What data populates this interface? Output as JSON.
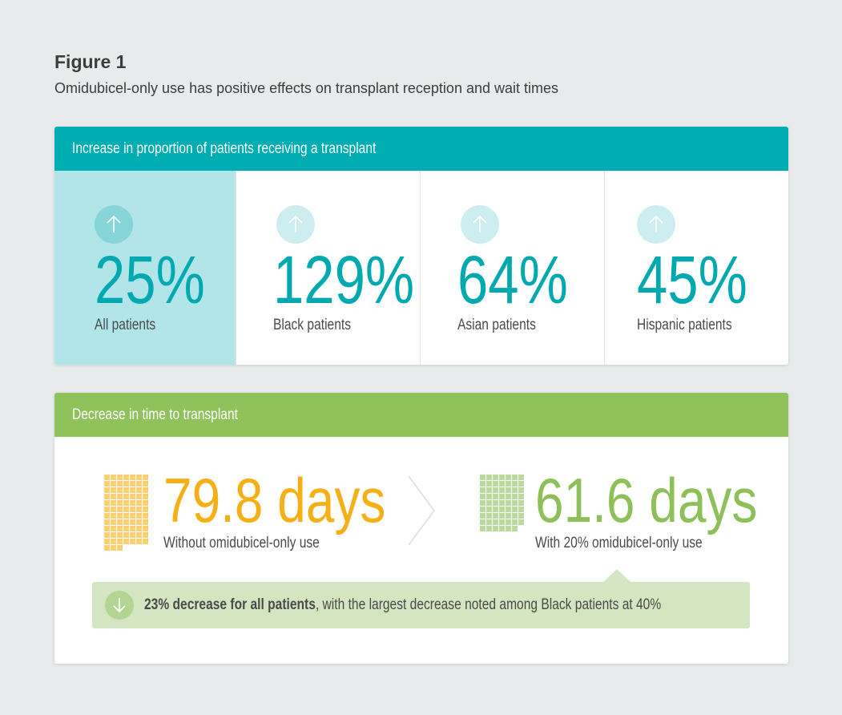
{
  "figure": {
    "title": "Figure 1",
    "subtitle": "Omidubicel-only use has positive effects on transplant reception and wait times"
  },
  "increase_panel": {
    "header": "Increase in proportion of patients receiving a transplant",
    "items": [
      {
        "value": "25%",
        "label": "All patients",
        "icon": "arrow-up-icon"
      },
      {
        "value": "129%",
        "label": "Black patients",
        "icon": "arrow-up-icon"
      },
      {
        "value": "64%",
        "label": "Asian patients",
        "icon": "arrow-up-icon"
      },
      {
        "value": "45%",
        "label": "Hispanic patients",
        "icon": "arrow-up-icon"
      }
    ]
  },
  "decrease_panel": {
    "header": "Decrease in time to transplant",
    "before": {
      "value": "79.8 days",
      "label": "Without omidubicel-only use",
      "squares": 80,
      "color": "#f4b016"
    },
    "after": {
      "value": "61.6 days",
      "label": "With 20% omidubicel-only use",
      "squares": 62,
      "color": "#8ec05a"
    },
    "callout": {
      "bold": "23% decrease for all patients",
      "rest": ", with the largest decrease noted among Black patients at 40%",
      "icon": "arrow-down-icon"
    }
  },
  "colors": {
    "teal": "#00adb3",
    "teal_light": "#b2e5e8",
    "green": "#8fc25b",
    "green_light": "#d3e6c1",
    "yellow": "#f4b016"
  }
}
